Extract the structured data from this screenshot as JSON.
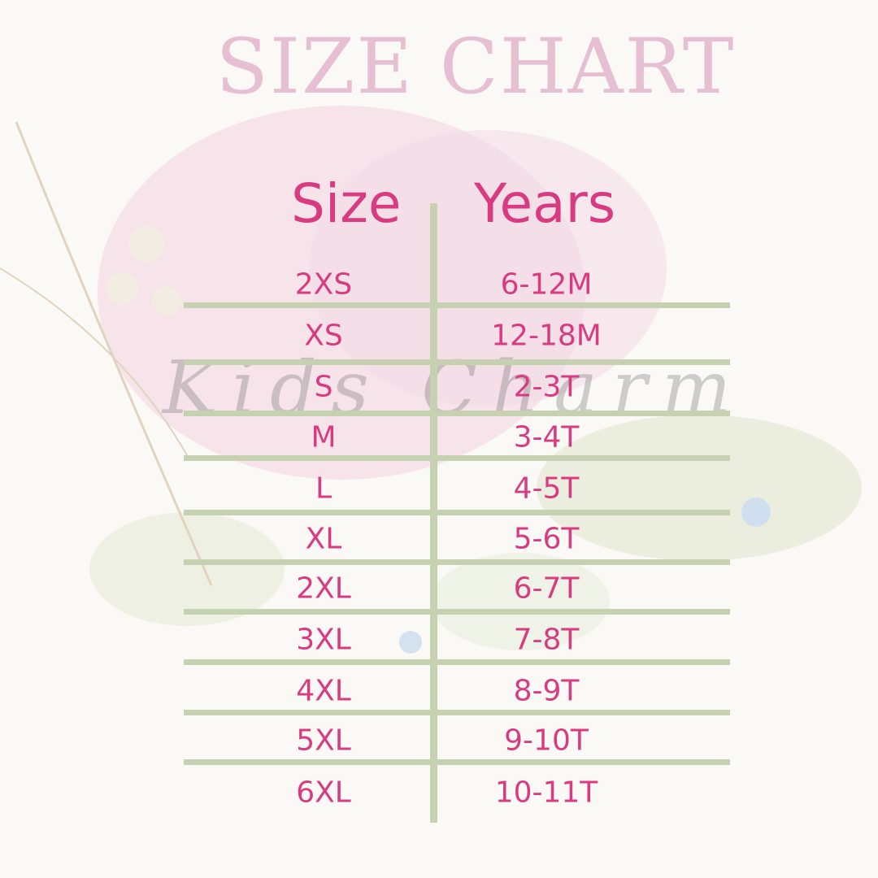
{
  "title": "SIZE CHART",
  "watermark": "Kids Charm",
  "colors": {
    "text": "#d83b80",
    "title": "#e6c0d2",
    "lines": "#c5d1b0"
  },
  "table": {
    "headers": [
      "Size",
      "Years"
    ],
    "rows": [
      [
        "2XS",
        "6-12M"
      ],
      [
        "XS",
        "12-18M"
      ],
      [
        "S",
        "2-3T"
      ],
      [
        "M",
        "3-4T"
      ],
      [
        "L",
        "4-5T"
      ],
      [
        "XL",
        "5-6T"
      ],
      [
        "2XL",
        "6-7T"
      ],
      [
        "3XL",
        "7-8T"
      ],
      [
        "4XL",
        "8-9T"
      ],
      [
        "5XL",
        "9-10T"
      ],
      [
        "6XL",
        "10-11T"
      ]
    ]
  }
}
